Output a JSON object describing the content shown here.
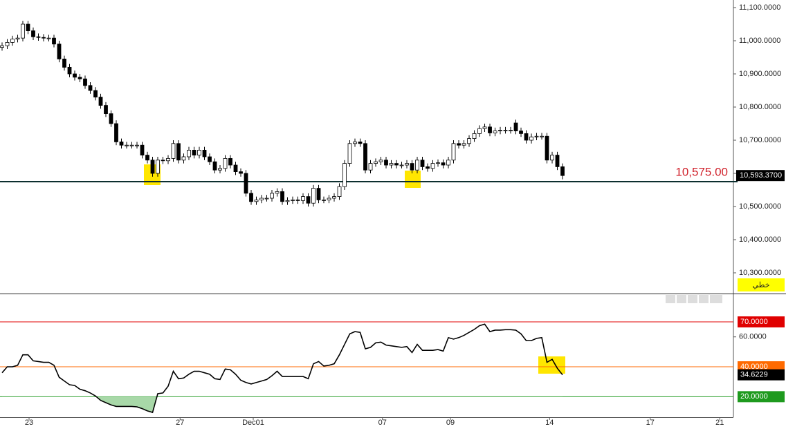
{
  "chart_data": [
    {
      "type": "candlestick",
      "xlim": [
        -0.4,
        140.93
      ],
      "ylim": [
        10237.5,
        11122.9
      ],
      "yticks": [
        {
          "value": 11100,
          "label": "11,100.0000"
        },
        {
          "value": 11000,
          "label": "11,000.0000"
        },
        {
          "value": 10900,
          "label": "10,900.0000"
        },
        {
          "value": 10800,
          "label": "10,800.0000"
        },
        {
          "value": 10700,
          "label": "10,700.0000"
        },
        {
          "value": 10600,
          "label": "10,600.0000"
        },
        {
          "value": 10500,
          "label": "10,500.0000"
        },
        {
          "value": 10400,
          "label": "10,400.0000"
        },
        {
          "value": 10300,
          "label": "10,300.0000"
        }
      ],
      "x": [
        0,
        1,
        2,
        3,
        4,
        5,
        6,
        7,
        8,
        9,
        10,
        11,
        12,
        13,
        14,
        15,
        16,
        17,
        18,
        19,
        20,
        21,
        22,
        23,
        24,
        25,
        26,
        27,
        28,
        29,
        30,
        31,
        32,
        33,
        34,
        35,
        36,
        37,
        38,
        39,
        40,
        41,
        42,
        43,
        44,
        45,
        46,
        47,
        48,
        49,
        50,
        51,
        52,
        53,
        54,
        55,
        56,
        57,
        58,
        59,
        60,
        61,
        62,
        63,
        64,
        65,
        66,
        67,
        68,
        69,
        70,
        71,
        72,
        73,
        74,
        75,
        76,
        77,
        78,
        79,
        80,
        81,
        82,
        83,
        84,
        85,
        86,
        87,
        88,
        89,
        90,
        91,
        92,
        93,
        94,
        95,
        96,
        97,
        98,
        99,
        100,
        101,
        102,
        103,
        104,
        105,
        106,
        107,
        108
      ],
      "open": [
        10980,
        10985,
        10995,
        11005,
        11008,
        11050,
        11030,
        11012,
        11010,
        11008,
        11008,
        10990,
        10945,
        10920,
        10900,
        10890,
        10885,
        10865,
        10850,
        10830,
        10805,
        10780,
        10750,
        10695,
        10685,
        10685,
        10685,
        10685,
        10655,
        10640,
        10600,
        10640,
        10638,
        10645,
        10690,
        10640,
        10650,
        10670,
        10655,
        10670,
        10650,
        10635,
        10610,
        10615,
        10645,
        10625,
        10605,
        10600,
        10540,
        10515,
        10520,
        10525,
        10525,
        10540,
        10545,
        10515,
        10518,
        10520,
        10518,
        10530,
        10510,
        10555,
        10520,
        10520,
        10525,
        10530,
        10560,
        10630,
        10690,
        10695,
        10690,
        10610,
        10630,
        10635,
        10640,
        10625,
        10630,
        10625,
        10625,
        10630,
        10610,
        10640,
        10620,
        10615,
        10630,
        10632,
        10625,
        10640,
        10690,
        10685,
        10690,
        10705,
        10720,
        10735,
        10740,
        10722,
        10728,
        10730,
        10730,
        10752,
        10728,
        10720,
        10700,
        10710,
        10712,
        10712,
        10640,
        10655,
        10620
      ],
      "high": [
        10995,
        11005,
        11015,
        11018,
        11060,
        11060,
        11040,
        11022,
        11020,
        11018,
        11018,
        11000,
        10955,
        10930,
        10910,
        10900,
        10895,
        10875,
        10860,
        10840,
        10815,
        10790,
        10760,
        10705,
        10695,
        10695,
        10695,
        10695,
        10665,
        10650,
        10650,
        10650,
        10655,
        10700,
        10700,
        10660,
        10680,
        10680,
        10680,
        10680,
        10660,
        10645,
        10625,
        10655,
        10655,
        10635,
        10615,
        10610,
        10550,
        10530,
        10535,
        10535,
        10550,
        10555,
        10555,
        10528,
        10530,
        10530,
        10540,
        10540,
        10565,
        10565,
        10530,
        10535,
        10540,
        10570,
        10640,
        10700,
        10705,
        10705,
        10700,
        10640,
        10645,
        10650,
        10650,
        10640,
        10640,
        10635,
        10640,
        10640,
        10650,
        10650,
        10630,
        10640,
        10642,
        10642,
        10650,
        10700,
        10700,
        10700,
        10715,
        10730,
        10745,
        10750,
        10750,
        10738,
        10740,
        10740,
        10740,
        10762,
        10738,
        10730,
        10720,
        10722,
        10722,
        10722,
        10665,
        10665,
        10630
      ],
      "low": [
        10970,
        10975,
        10985,
        10995,
        10998,
        11020,
        11002,
        11000,
        10998,
        10998,
        10980,
        10935,
        10910,
        10890,
        10880,
        10875,
        10855,
        10840,
        10820,
        10795,
        10770,
        10740,
        10685,
        10675,
        10675,
        10675,
        10675,
        10645,
        10630,
        10590,
        10590,
        10628,
        10628,
        10635,
        10630,
        10630,
        10640,
        10645,
        10645,
        10640,
        10625,
        10600,
        10600,
        10605,
        10615,
        10595,
        10590,
        10530,
        10505,
        10505,
        10510,
        10515,
        10515,
        10530,
        10505,
        10505,
        10508,
        10508,
        10508,
        10500,
        10500,
        10510,
        10510,
        10510,
        10515,
        10520,
        10550,
        10620,
        10680,
        10680,
        10600,
        10600,
        10620,
        10625,
        10615,
        10615,
        10615,
        10615,
        10615,
        10600,
        10600,
        10610,
        10605,
        10605,
        10620,
        10615,
        10615,
        10630,
        10675,
        10675,
        10680,
        10695,
        10710,
        10725,
        10712,
        10712,
        10718,
        10720,
        10720,
        10718,
        10710,
        10690,
        10690,
        10700,
        10702,
        10630,
        10630,
        10610,
        10582
      ],
      "close": [
        10985,
        10995,
        11005,
        11008,
        11050,
        11030,
        11012,
        11010,
        11008,
        11008,
        10990,
        10945,
        10920,
        10900,
        10890,
        10885,
        10865,
        10850,
        10830,
        10805,
        10780,
        10750,
        10695,
        10685,
        10685,
        10685,
        10685,
        10655,
        10640,
        10600,
        10640,
        10638,
        10645,
        10690,
        10640,
        10650,
        10670,
        10655,
        10670,
        10650,
        10635,
        10610,
        10615,
        10645,
        10625,
        10605,
        10600,
        10540,
        10515,
        10520,
        10525,
        10525,
        10540,
        10545,
        10515,
        10518,
        10520,
        10518,
        10530,
        10510,
        10555,
        10520,
        10520,
        10525,
        10530,
        10560,
        10630,
        10690,
        10695,
        10690,
        10610,
        10630,
        10635,
        10640,
        10625,
        10630,
        10625,
        10625,
        10630,
        10610,
        10640,
        10620,
        10615,
        10630,
        10632,
        10625,
        10640,
        10690,
        10685,
        10690,
        10705,
        10720,
        10735,
        10740,
        10722,
        10728,
        10730,
        10730,
        10730,
        10728,
        10720,
        10700,
        10710,
        10712,
        10712,
        10640,
        10655,
        10620,
        10593.37
      ],
      "reference_line": {
        "value": 10575,
        "label": "10,575.00",
        "color": "#d0202a"
      },
      "last_price": {
        "value": 10593.37,
        "label": "10,593.3700"
      },
      "chart_type_label": "خطي"
    },
    {
      "type": "line",
      "xlim": [
        -0.4,
        140.93
      ],
      "ylim": [
        6.3,
        88.5
      ],
      "yticks": [
        {
          "value": 60,
          "label": "60.0000"
        }
      ],
      "levels": [
        {
          "value": 70,
          "label": "70.0000",
          "color": "#e00000"
        },
        {
          "value": 40,
          "label": "40.0000",
          "color": "#ff6a00"
        },
        {
          "value": 20,
          "label": "20.0000",
          "color": "#1e9a1e"
        }
      ],
      "xticks": [
        {
          "value": 5.2,
          "label": "23"
        },
        {
          "value": 34.3,
          "label": "27"
        },
        {
          "value": 48.4,
          "label": "Dec01"
        },
        {
          "value": 73.3,
          "label": "07"
        },
        {
          "value": 86.4,
          "label": "09"
        },
        {
          "value": 105.5,
          "label": "14"
        },
        {
          "value": 124.9,
          "label": "17"
        },
        {
          "value": 138.3,
          "label": "21"
        }
      ],
      "x": [
        0,
        1,
        2,
        3,
        4,
        5,
        6,
        7,
        8,
        9,
        10,
        11,
        12,
        13,
        14,
        15,
        16,
        17,
        18,
        19,
        20,
        21,
        22,
        23,
        24,
        25,
        26,
        27,
        28,
        29,
        30,
        31,
        32,
        33,
        34,
        35,
        36,
        37,
        38,
        39,
        40,
        41,
        42,
        43,
        44,
        45,
        46,
        47,
        48,
        49,
        50,
        51,
        52,
        53,
        54,
        55,
        56,
        57,
        58,
        59,
        60,
        61,
        62,
        63,
        64,
        65,
        66,
        67,
        68,
        69,
        70,
        71,
        72,
        73,
        74,
        75,
        76,
        77,
        78,
        79,
        80,
        81,
        82,
        83,
        84,
        85,
        86,
        87,
        88,
        89,
        90,
        91,
        92,
        93,
        94,
        95,
        96,
        97,
        98,
        99,
        100,
        101,
        102,
        103,
        104,
        105,
        106,
        107,
        108
      ],
      "series": [
        {
          "color": "#000000",
          "values": [
            36,
            40,
            40,
            41,
            48,
            48,
            44,
            43.5,
            43,
            43,
            41,
            33,
            30.5,
            28,
            27.5,
            25,
            24,
            22.5,
            20.5,
            17.5,
            16,
            14.5,
            13.5,
            13.5,
            13.5,
            13.5,
            13.2,
            12,
            10.5,
            9.5,
            22,
            22.5,
            27,
            37,
            32,
            32.5,
            35,
            37,
            37,
            36,
            35,
            32,
            31.5,
            38.5,
            38,
            35,
            31,
            29.5,
            28.5,
            29.5,
            30.5,
            31.5,
            34,
            37,
            33.5,
            33.5,
            33.5,
            33.5,
            33.5,
            32,
            42,
            43.5,
            40.5,
            41,
            42,
            48,
            55,
            62,
            63.5,
            63,
            52,
            53,
            56,
            56.5,
            54.5,
            54,
            53.5,
            53,
            53.5,
            49.5,
            55,
            51,
            51,
            51,
            51.5,
            50.5,
            59.5,
            58.5,
            59.5,
            61,
            63,
            65,
            67.5,
            68.5,
            63.5,
            64.5,
            64.5,
            64.8,
            64.8,
            64.5,
            62,
            57.5,
            57.5,
            59,
            59.5,
            43,
            45,
            39,
            34.6229
          ]
        }
      ],
      "oversold_fill": "#a8d8a8"
    }
  ]
}
